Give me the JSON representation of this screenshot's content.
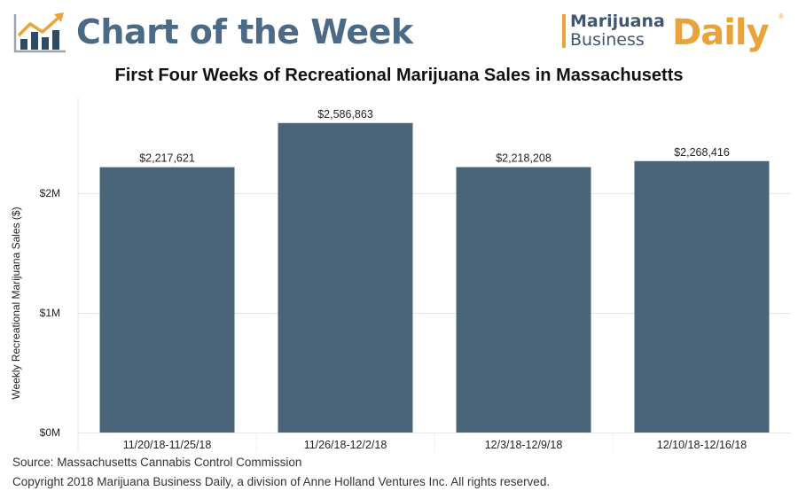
{
  "header": {
    "title": "Chart of the Week",
    "brand": {
      "line1": "Marijuana",
      "line2": "Business",
      "daily": "Daily",
      "registered": "®",
      "accent_color": "#e8a43a",
      "dark_color": "#3e5670"
    }
  },
  "colors": {
    "bar": "#4a6479",
    "grid": "#e6e6e6",
    "title_blue": "#4a6a86"
  },
  "chart_data": {
    "type": "bar",
    "title": "First Four Weeks of Recreational Marijuana Sales in Massachusetts",
    "xlabel": "",
    "ylabel": "Weekly Recreational Marijuana Sales ($)",
    "categories": [
      "11/20/18-11/25/18",
      "11/26/18-12/2/18",
      "12/3/18-12/9/18",
      "12/10/18-12/16/18"
    ],
    "values": [
      2217621,
      2586863,
      2218208,
      2268416
    ],
    "data_labels": [
      "$2,217,621",
      "$2,586,863",
      "$2,218,208",
      "$2,268,416"
    ],
    "yticks": [
      0,
      1000000,
      2000000
    ],
    "ytick_labels": [
      "$0M",
      "$1M",
      "$2M"
    ],
    "ylim": [
      0,
      2800000
    ],
    "grid": true,
    "legend": "none"
  },
  "footer": {
    "source": "Source: Massachusetts Cannabis Control Commission",
    "copyright": "Copyright 2018 Marijuana Business Daily, a division of Anne Holland Ventures Inc. All rights reserved."
  }
}
